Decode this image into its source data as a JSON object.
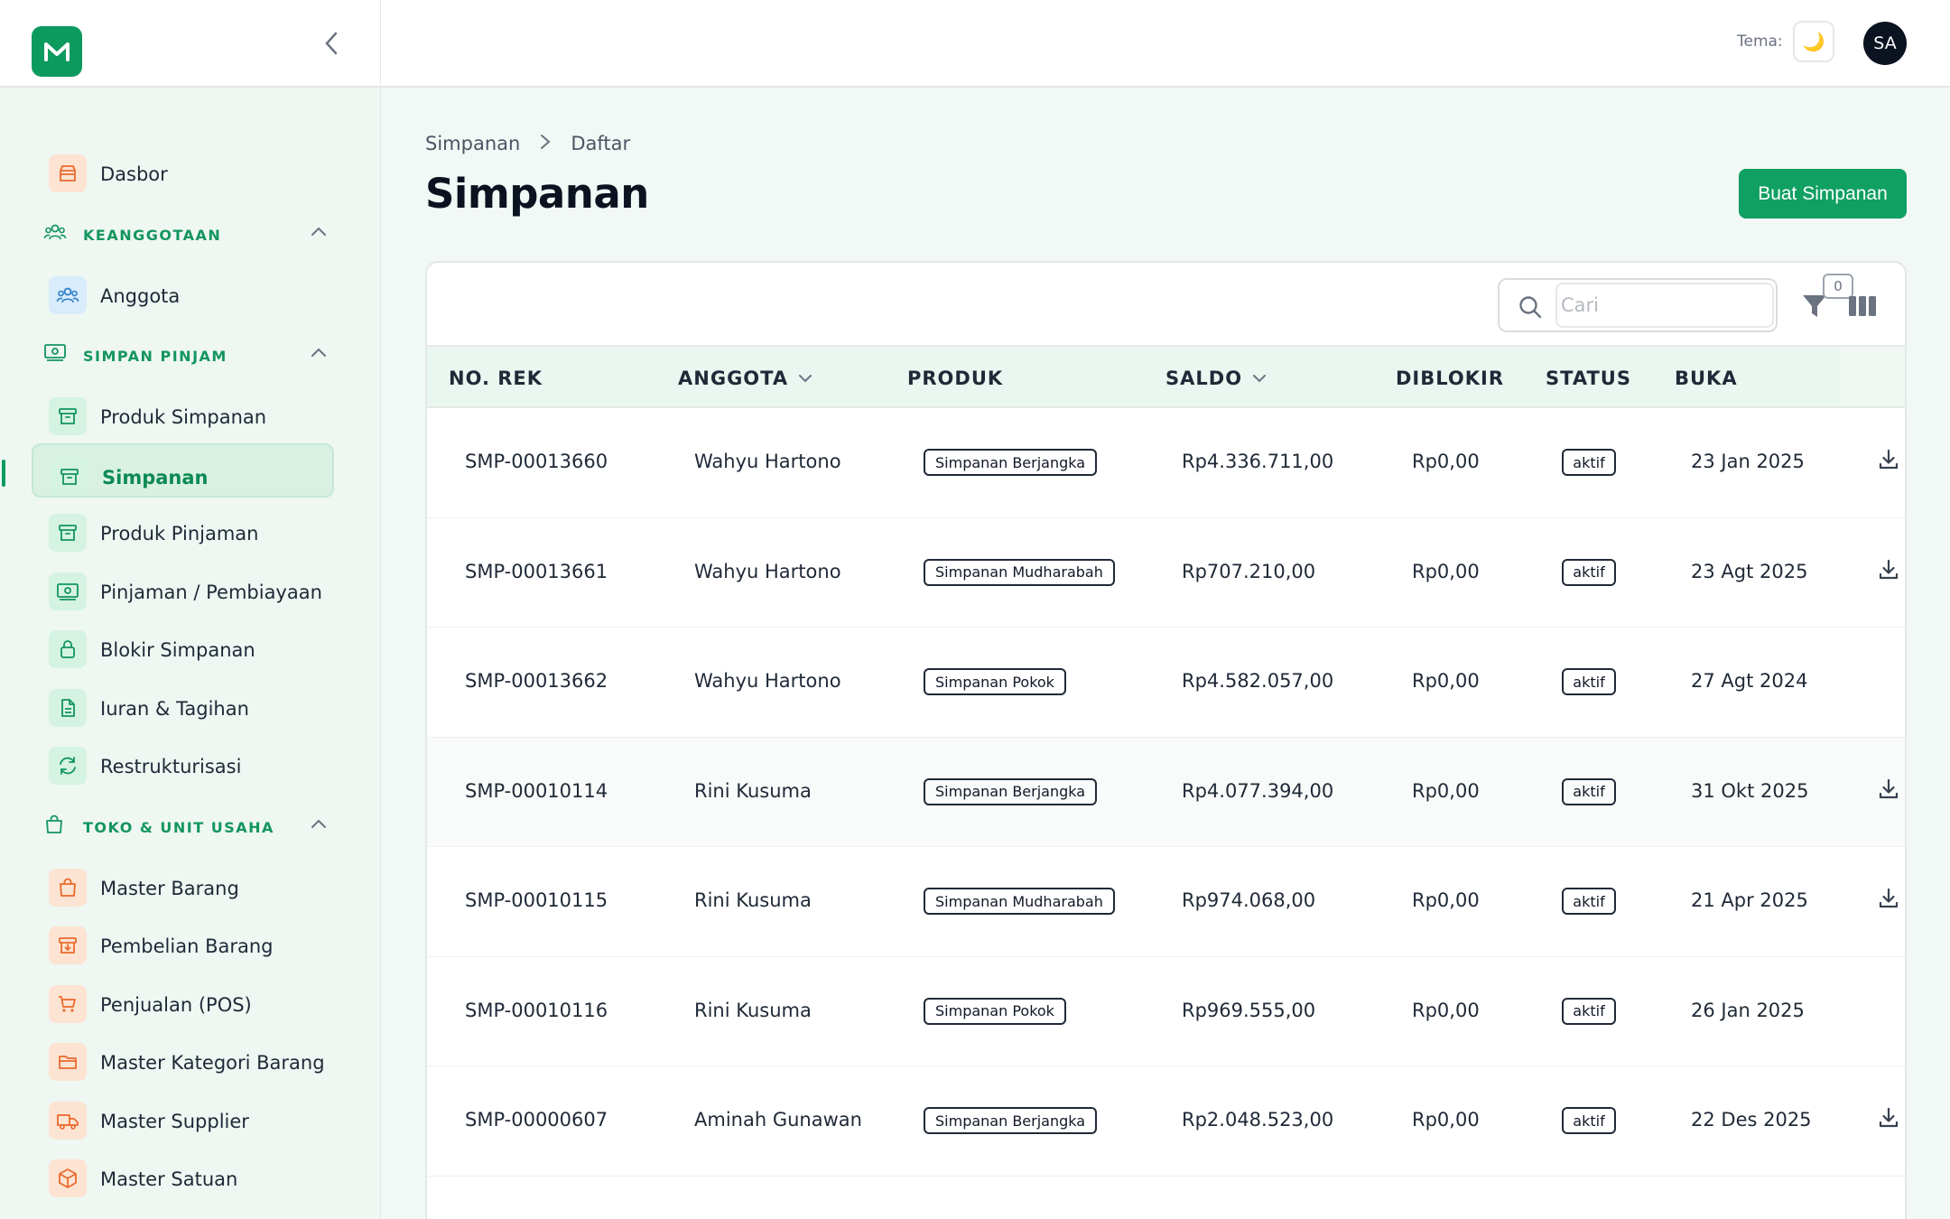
{
  "sidebar": {
    "top_items": [
      {
        "label": "Dasbor",
        "icon": "store-icon",
        "color": "orange"
      }
    ],
    "sections": [
      {
        "title": "KEANGGOTAAN",
        "icon": "users-icon",
        "items": [
          {
            "label": "Anggota",
            "icon": "users-icon",
            "color": "blue"
          }
        ]
      },
      {
        "title": "SIMPAN PINJAM",
        "icon": "money-icon",
        "items": [
          {
            "label": "Produk Simpanan",
            "icon": "archive-icon",
            "color": "green"
          },
          {
            "label": "Simpanan",
            "icon": "archive-icon",
            "color": "green",
            "active": true
          },
          {
            "label": "Produk Pinjaman",
            "icon": "archive-icon",
            "color": "green"
          },
          {
            "label": "Pinjaman / Pembiayaan",
            "icon": "money-icon",
            "color": "green"
          },
          {
            "label": "Blokir Simpanan",
            "icon": "lock-icon",
            "color": "green"
          },
          {
            "label": "Iuran & Tagihan",
            "icon": "document-icon",
            "color": "green"
          },
          {
            "label": "Restrukturisasi",
            "icon": "refresh-icon",
            "color": "green"
          }
        ]
      },
      {
        "title": "TOKO & UNIT USAHA",
        "icon": "shopping-bag-icon",
        "items": [
          {
            "label": "Master Barang",
            "icon": "shopping-bag-icon",
            "color": "orange"
          },
          {
            "label": "Pembelian Barang",
            "icon": "archive-download-icon",
            "color": "orange"
          },
          {
            "label": "Penjualan (POS)",
            "icon": "cart-icon",
            "color": "orange"
          },
          {
            "label": "Master Kategori Barang",
            "icon": "folder-icon",
            "color": "orange"
          },
          {
            "label": "Master Supplier",
            "icon": "truck-icon",
            "color": "orange"
          },
          {
            "label": "Master Satuan",
            "icon": "cube-icon",
            "color": "orange"
          }
        ]
      }
    ]
  },
  "topbar": {
    "theme_label": "Tema:",
    "theme_icon": "🌙",
    "avatar_initials": "SA"
  },
  "breadcrumb": [
    "Simpanan",
    "Daftar"
  ],
  "page_title": "Simpanan",
  "create_button": "Buat Simpanan",
  "search": {
    "placeholder": "Cari"
  },
  "filter_count": "0",
  "table": {
    "columns": [
      "NO. REK",
      "ANGGOTA",
      "PRODUK",
      "SALDO",
      "DIBLOKIR",
      "STATUS",
      "BUKA"
    ],
    "rows": [
      {
        "no_rek": "SMP-00013660",
        "anggota": "Wahyu Hartono",
        "produk": "Simpanan Berjangka",
        "saldo": "Rp4.336.711,00",
        "diblokir": "Rp0,00",
        "status": "aktif",
        "buka": "23 Jan 2025",
        "download": true
      },
      {
        "no_rek": "SMP-00013661",
        "anggota": "Wahyu Hartono",
        "produk": "Simpanan Mudharabah",
        "saldo": "Rp707.210,00",
        "diblokir": "Rp0,00",
        "status": "aktif",
        "buka": "23 Agt 2025",
        "download": true
      },
      {
        "no_rek": "SMP-00013662",
        "anggota": "Wahyu Hartono",
        "produk": "Simpanan Pokok",
        "saldo": "Rp4.582.057,00",
        "diblokir": "Rp0,00",
        "status": "aktif",
        "buka": "27 Agt 2024",
        "download": false
      },
      {
        "no_rek": "SMP-00010114",
        "anggota": "Rini Kusuma",
        "produk": "Simpanan Berjangka",
        "saldo": "Rp4.077.394,00",
        "diblokir": "Rp0,00",
        "status": "aktif",
        "buka": "31 Okt 2025",
        "download": true
      },
      {
        "no_rek": "SMP-00010115",
        "anggota": "Rini Kusuma",
        "produk": "Simpanan Mudharabah",
        "saldo": "Rp974.068,00",
        "diblokir": "Rp0,00",
        "status": "aktif",
        "buka": "21 Apr 2025",
        "download": true
      },
      {
        "no_rek": "SMP-00010116",
        "anggota": "Rini Kusuma",
        "produk": "Simpanan Pokok",
        "saldo": "Rp969.555,00",
        "diblokir": "Rp0,00",
        "status": "aktif",
        "buka": "26 Jan 2025",
        "download": false
      },
      {
        "no_rek": "SMP-00000607",
        "anggota": "Aminah Gunawan",
        "produk": "Simpanan Berjangka",
        "saldo": "Rp2.048.523,00",
        "diblokir": "Rp0,00",
        "status": "aktif",
        "buka": "22 Des 2025",
        "download": true
      }
    ]
  },
  "colors": {
    "primary": "#10a062",
    "sidebar_bg": "#eef7f2",
    "header_bg": "#eaf6f0"
  }
}
